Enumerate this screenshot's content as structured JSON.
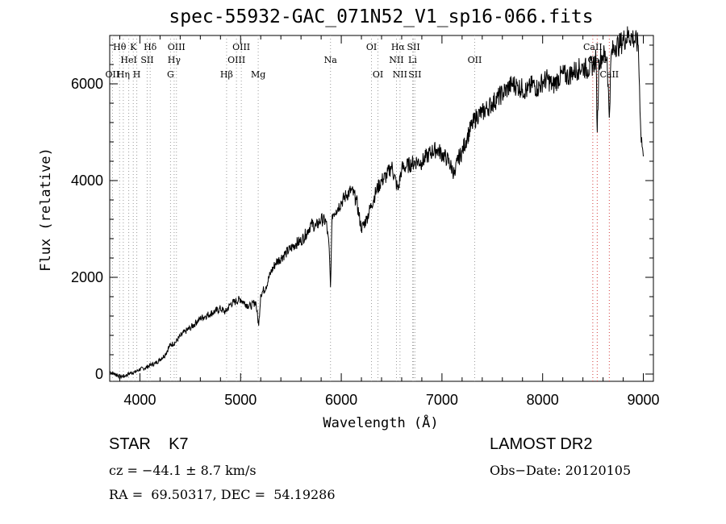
{
  "chart_data": {
    "type": "line",
    "title": "spec-55932-GAC_071N52_V1_sp16-066.fits",
    "xlabel": "Wavelength (Å)",
    "ylabel": "Flux (relative)",
    "xlim": [
      3700,
      9100
    ],
    "ylim": [
      -150,
      7000
    ],
    "xticks": [
      4000,
      5000,
      6000,
      7000,
      8000,
      9000
    ],
    "yticks": [
      0,
      2000,
      4000,
      6000
    ],
    "grid": false,
    "series": [
      {
        "x": [
          3700,
          3750,
          3800,
          3850,
          3900,
          3950,
          4000,
          4050,
          4100,
          4150,
          4200,
          4250,
          4300,
          4350,
          4400,
          4450,
          4500,
          4550,
          4600,
          4650,
          4700,
          4750,
          4800,
          4850,
          4900,
          4950,
          5000,
          5050,
          5100,
          5150,
          5180,
          5200,
          5250,
          5300,
          5350,
          5400,
          5450,
          5500,
          5550,
          5600,
          5650,
          5700,
          5750,
          5800,
          5850,
          5880,
          5893,
          5910,
          5950,
          6000,
          6050,
          6100,
          6150,
          6200,
          6250,
          6300,
          6350,
          6400,
          6450,
          6500,
          6563,
          6600,
          6650,
          6700,
          6750,
          6800,
          6850,
          6900,
          6950,
          7000,
          7050,
          7100,
          7130,
          7150,
          7200,
          7250,
          7300,
          7350,
          7400,
          7450,
          7500,
          7550,
          7600,
          7650,
          7700,
          7750,
          7800,
          7850,
          7900,
          7950,
          8000,
          8050,
          8100,
          8150,
          8200,
          8250,
          8300,
          8350,
          8400,
          8450,
          8500,
          8530,
          8542,
          8560,
          8600,
          8640,
          8662,
          8680,
          8720,
          8760,
          8800,
          8850,
          8900,
          8950,
          8975,
          9000
        ],
        "y": [
          50,
          0,
          -50,
          -40,
          20,
          40,
          100,
          120,
          180,
          220,
          300,
          400,
          600,
          650,
          780,
          880,
          950,
          1050,
          1150,
          1200,
          1250,
          1300,
          1350,
          1280,
          1450,
          1500,
          1550,
          1450,
          1400,
          1500,
          1000,
          1650,
          1800,
          2100,
          2300,
          2400,
          2500,
          2600,
          2700,
          2750,
          2900,
          3100,
          3050,
          3200,
          3150,
          2600,
          1800,
          3300,
          3400,
          3550,
          3700,
          3800,
          3600,
          3000,
          3200,
          3500,
          3800,
          4000,
          4100,
          4300,
          3800,
          4250,
          4300,
          4350,
          4400,
          4380,
          4500,
          4600,
          4650,
          4550,
          4450,
          4250,
          4100,
          4400,
          4600,
          4900,
          5150,
          5350,
          5400,
          5500,
          5600,
          5700,
          5800,
          5900,
          6000,
          5950,
          5900,
          5850,
          6000,
          5900,
          6050,
          6100,
          5950,
          6100,
          6200,
          6150,
          6250,
          6300,
          6350,
          6300,
          6400,
          6500,
          5000,
          6500,
          6600,
          6550,
          5300,
          6600,
          6800,
          6800,
          6900,
          7000,
          6950,
          6800,
          5000,
          4500
        ]
      }
    ],
    "line_labels": {
      "row1": [
        {
          "text": "Hθ",
          "x": 3798
        },
        {
          "text": "K",
          "x": 3934
        },
        {
          "text": "Hδ",
          "x": 4102
        },
        {
          "text": "OIII",
          "x": 4363
        },
        {
          "text": "OIII",
          "x": 5007
        },
        {
          "text": "OI",
          "x": 6300
        },
        {
          "text": "Hα",
          "x": 6563
        },
        {
          "text": "SII",
          "x": 6717
        },
        {
          "text": "CaII",
          "x": 8498
        }
      ],
      "row2": [
        {
          "text": "HeI",
          "x": 3889
        },
        {
          "text": "SII",
          "x": 4072
        },
        {
          "text": "Hγ",
          "x": 4340
        },
        {
          "text": "OIII",
          "x": 4959
        },
        {
          "text": "Na",
          "x": 5893
        },
        {
          "text": "NII",
          "x": 6548
        },
        {
          "text": "Li",
          "x": 6708
        },
        {
          "text": "OII",
          "x": 7325
        },
        {
          "text": "CaII",
          "x": 8542
        }
      ],
      "row3": [
        {
          "text": "OII",
          "x": 3727
        },
        {
          "text": "Hη",
          "x": 3835
        },
        {
          "text": "H",
          "x": 3969
        },
        {
          "text": "G",
          "x": 4304
        },
        {
          "text": "Hβ",
          "x": 4861
        },
        {
          "text": "Mg",
          "x": 5175
        },
        {
          "text": "OI",
          "x": 6364
        },
        {
          "text": "NII",
          "x": 6583
        },
        {
          "text": "SII",
          "x": 6731
        },
        {
          "text": "CaII",
          "x": 8662
        }
      ]
    },
    "gray_lines": [
      3727,
      3798,
      3835,
      3889,
      3934,
      3969,
      4072,
      4102,
      4304,
      4340,
      4363,
      4861,
      4959,
      5007,
      5175,
      5893,
      6300,
      6364,
      6548,
      6583,
      6708,
      6717,
      6731,
      7325
    ],
    "red_lines": [
      8498,
      8542,
      8662
    ]
  },
  "info": {
    "line1_left": "STAR    K7",
    "line1_right": "LAMOST DR2",
    "line2_left": "cz = −44.1 ± 8.7 km/s",
    "line2_right": "Obs−Date: 20120105",
    "line3_left": "RA =  69.50317, DEC =  54.19286"
  }
}
